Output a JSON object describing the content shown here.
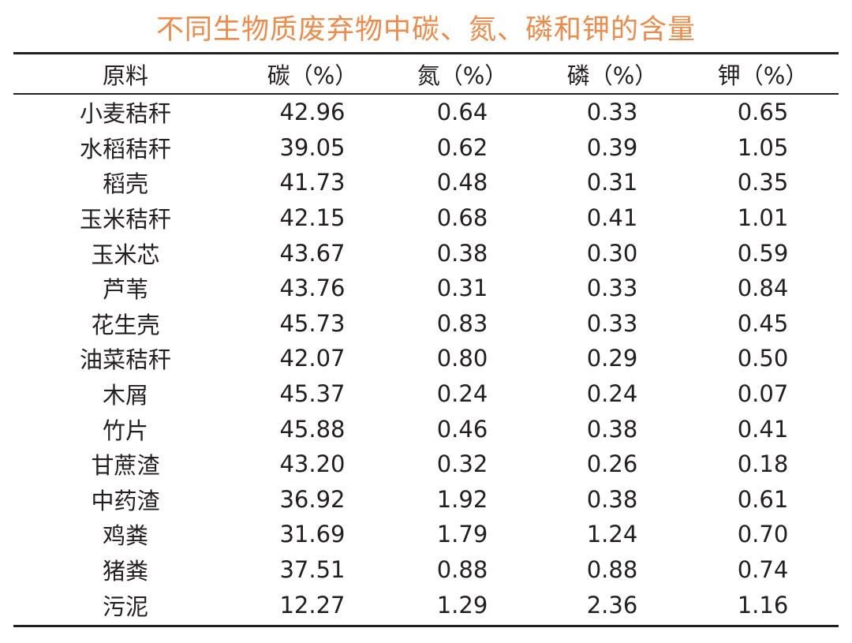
{
  "title": "不同生物质废弃物中碳、氮、磷和钾的含量",
  "table": {
    "headers": [
      "原料",
      "碳（%）",
      "氮（%）",
      "磷（%）",
      "钾（%）"
    ],
    "rows": [
      [
        "小麦秸秆",
        "42.96",
        "0.64",
        "0.33",
        "0.65"
      ],
      [
        "水稻秸秆",
        "39.05",
        "0.62",
        "0.39",
        "1.05"
      ],
      [
        "稻壳",
        "41.73",
        "0.48",
        "0.31",
        "0.35"
      ],
      [
        "玉米秸秆",
        "42.15",
        "0.68",
        "0.41",
        "1.01"
      ],
      [
        "玉米芯",
        "43.67",
        "0.38",
        "0.30",
        "0.59"
      ],
      [
        "芦苇",
        "43.76",
        "0.31",
        "0.33",
        "0.84"
      ],
      [
        "花生壳",
        "45.73",
        "0.83",
        "0.33",
        "0.45"
      ],
      [
        "油菜秸秆",
        "42.07",
        "0.80",
        "0.29",
        "0.50"
      ],
      [
        "木屑",
        "45.37",
        "0.24",
        "0.24",
        "0.07"
      ],
      [
        "竹片",
        "45.88",
        "0.46",
        "0.38",
        "0.41"
      ],
      [
        "甘蔗渣",
        "43.20",
        "0.32",
        "0.26",
        "0.18"
      ],
      [
        "中药渣",
        "36.92",
        "1.92",
        "0.38",
        "0.61"
      ],
      [
        "鸡粪",
        "31.69",
        "1.79",
        "1.24",
        "0.70"
      ],
      [
        "猪粪",
        "37.51",
        "0.88",
        "0.88",
        "0.74"
      ],
      [
        "污泥",
        "12.27",
        "1.29",
        "2.36",
        "1.16"
      ]
    ]
  },
  "colors": {
    "title": "#ec8b4a",
    "text": "#231f20",
    "rules": "#231f20"
  }
}
